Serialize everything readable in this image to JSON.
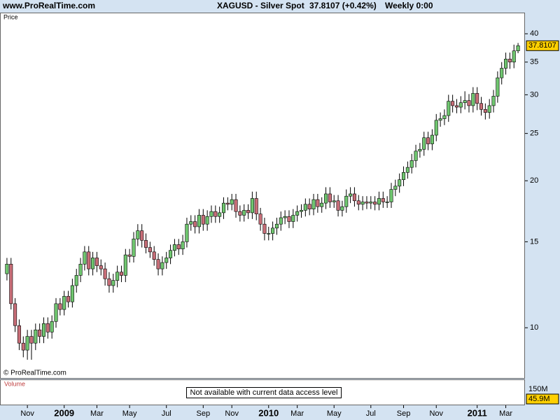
{
  "header": {
    "site": "www.ProRealTime.com",
    "symbol": "XAGUSD - Silver Spot",
    "quote": "37.8107 (+0.42%)",
    "timeframe": "Weekly  0:00"
  },
  "chart_data": {
    "type": "candlestick",
    "panel_label": "Price",
    "copyright": "© ProRealTime.com",
    "log_scale": true,
    "up_color": "#6fc66f",
    "down_color": "#c86e78",
    "ylim": [
      7.89,
      44.2
    ],
    "yticks": [
      10,
      15,
      20,
      25,
      30,
      35,
      40
    ],
    "categories": [
      null,
      null,
      null,
      null,
      null,
      "Nov",
      null,
      null,
      null,
      null,
      null,
      null,
      null,
      null,
      "2009",
      null,
      null,
      null,
      null,
      null,
      null,
      null,
      "Mar",
      null,
      null,
      null,
      null,
      null,
      null,
      null,
      "May",
      null,
      null,
      null,
      null,
      null,
      null,
      null,
      null,
      "Jul",
      null,
      null,
      null,
      null,
      null,
      null,
      null,
      null,
      "Sep",
      null,
      null,
      null,
      null,
      null,
      null,
      "Nov",
      null,
      null,
      null,
      null,
      null,
      null,
      null,
      null,
      "2010",
      null,
      null,
      null,
      null,
      null,
      null,
      "Mar",
      null,
      null,
      null,
      null,
      null,
      null,
      null,
      null,
      "May",
      null,
      null,
      null,
      null,
      null,
      null,
      null,
      null,
      "Jul",
      null,
      null,
      null,
      null,
      null,
      null,
      null,
      "Sep",
      null,
      null,
      null,
      null,
      null,
      null,
      null,
      "Nov",
      null,
      null,
      null,
      null,
      null,
      null,
      null,
      null,
      null,
      "2011",
      null,
      null,
      null,
      null,
      null,
      null,
      "Mar",
      null,
      null,
      null
    ],
    "open": [
      12.9,
      13.5,
      11.2,
      10.1,
      9.3,
      9.0,
      9.6,
      9.3,
      9.9,
      9.6,
      10.2,
      9.8,
      10.3,
      11.2,
      10.9,
      11.6,
      11.3,
      12.2,
      12.8,
      13.5,
      14.3,
      13.2,
      13.9,
      13.4,
      13.2,
      12.6,
      12.2,
      12.5,
      13.0,
      12.8,
      14.1,
      14.0,
      15.2,
      15.8,
      15.1,
      14.6,
      14.3,
      13.8,
      13.2,
      13.6,
      13.9,
      14.4,
      14.8,
      14.5,
      15.0,
      16.3,
      16.5,
      16.1,
      17.0,
      16.3,
      16.9,
      17.3,
      16.9,
      17.2,
      18.0,
      17.9,
      18.3,
      17.3,
      17.0,
      17.4,
      17.2,
      18.4,
      17.1,
      16.3,
      15.6,
      15.6,
      16.0,
      16.3,
      16.8,
      16.9,
      16.5,
      17.0,
      17.3,
      17.4,
      17.9,
      17.5,
      18.3,
      17.7,
      18.0,
      18.8,
      18.1,
      18.2,
      17.4,
      17.7,
      18.6,
      18.8,
      18.2,
      17.9,
      18.1,
      18.0,
      18.1,
      17.9,
      18.4,
      18.1,
      18.1,
      19.2,
      19.5,
      20.1,
      20.8,
      21.3,
      22.0,
      23.0,
      23.2,
      24.5,
      23.8,
      24.8,
      26.6,
      26.8,
      27.2,
      29.1,
      28.5,
      28.3,
      28.9,
      29.2,
      28.5,
      30.2,
      28.8,
      28.0,
      27.6,
      28.5,
      29.8,
      32.5,
      34.0,
      35.5,
      35.0,
      36.9
    ],
    "high": [
      13.9,
      13.9,
      11.5,
      10.4,
      9.6,
      9.9,
      9.9,
      10.2,
      10.2,
      10.5,
      10.5,
      10.6,
      11.5,
      11.5,
      11.9,
      11.9,
      12.6,
      13.2,
      13.9,
      14.7,
      14.7,
      14.3,
      14.3,
      13.8,
      13.6,
      13.0,
      12.9,
      13.4,
      13.4,
      14.5,
      14.5,
      15.7,
      16.3,
      16.3,
      15.6,
      15.0,
      14.7,
      14.2,
      14.0,
      14.3,
      14.8,
      15.2,
      15.2,
      15.5,
      16.8,
      17.0,
      17.0,
      17.5,
      17.5,
      17.4,
      17.8,
      17.8,
      17.7,
      18.5,
      18.5,
      18.8,
      18.8,
      17.8,
      17.9,
      17.9,
      19.0,
      19.0,
      17.6,
      16.8,
      16.1,
      16.5,
      16.8,
      17.3,
      17.4,
      17.4,
      17.5,
      17.8,
      17.9,
      18.4,
      18.4,
      18.8,
      18.8,
      18.5,
      19.4,
      19.4,
      18.7,
      18.7,
      18.2,
      19.2,
      19.4,
      19.4,
      18.7,
      18.6,
      18.6,
      18.6,
      18.6,
      19.0,
      19.0,
      18.6,
      19.8,
      20.1,
      20.7,
      21.4,
      21.9,
      22.7,
      23.7,
      23.9,
      25.2,
      25.2,
      25.5,
      27.4,
      27.6,
      28.0,
      30.0,
      30.0,
      29.4,
      29.8,
      30.5,
      30.1,
      31.1,
      31.1,
      29.7,
      28.8,
      29.4,
      30.7,
      33.5,
      35.0,
      36.6,
      36.6,
      38.0,
      38.3
    ],
    "low": [
      12.5,
      10.9,
      9.8,
      9.0,
      8.7,
      8.6,
      8.6,
      9.0,
      9.3,
      9.3,
      9.5,
      9.5,
      10.0,
      10.6,
      10.6,
      11.0,
      11.0,
      11.8,
      12.4,
      13.1,
      12.8,
      12.8,
      13.0,
      12.8,
      12.2,
      11.8,
      11.8,
      12.1,
      12.4,
      12.4,
      13.6,
      13.6,
      14.7,
      14.6,
      14.2,
      13.9,
      13.4,
      12.8,
      12.8,
      13.2,
      13.5,
      14.0,
      14.1,
      14.1,
      14.6,
      15.8,
      15.6,
      15.6,
      15.8,
      15.8,
      16.4,
      16.4,
      16.4,
      16.7,
      17.4,
      17.4,
      16.8,
      16.5,
      16.5,
      16.7,
      16.7,
      16.6,
      15.8,
      15.1,
      15.1,
      15.1,
      15.5,
      15.8,
      16.3,
      16.0,
      16.0,
      16.5,
      16.8,
      16.9,
      17.0,
      17.0,
      17.2,
      17.2,
      17.5,
      17.6,
      17.6,
      16.9,
      16.9,
      17.2,
      18.0,
      17.7,
      17.4,
      17.4,
      17.5,
      17.5,
      17.4,
      17.4,
      17.6,
      17.6,
      17.6,
      18.6,
      18.9,
      19.5,
      20.2,
      20.7,
      21.3,
      22.3,
      22.5,
      23.1,
      23.1,
      24.1,
      25.8,
      26.0,
      26.4,
      27.6,
      27.5,
      27.5,
      28.0,
      27.6,
      27.6,
      27.9,
      27.2,
      26.7,
      26.8,
      27.6,
      28.9,
      31.5,
      33.0,
      33.9,
      34.0,
      36.5
    ],
    "close": [
      13.5,
      11.2,
      10.1,
      9.3,
      9.0,
      9.6,
      9.3,
      9.9,
      9.6,
      10.2,
      9.8,
      10.3,
      11.2,
      10.9,
      11.6,
      11.3,
      12.2,
      12.8,
      13.5,
      14.3,
      13.2,
      13.9,
      13.4,
      13.2,
      12.6,
      12.2,
      12.5,
      13.0,
      12.8,
      14.1,
      14.0,
      15.2,
      15.8,
      15.1,
      14.6,
      14.3,
      13.8,
      13.2,
      13.6,
      13.9,
      14.4,
      14.8,
      14.5,
      15.0,
      16.3,
      16.5,
      16.1,
      17.0,
      16.3,
      16.9,
      17.3,
      16.9,
      17.2,
      18.0,
      17.9,
      18.3,
      17.3,
      17.0,
      17.4,
      17.2,
      18.4,
      17.1,
      16.3,
      15.6,
      15.6,
      16.0,
      16.3,
      16.8,
      16.9,
      16.5,
      17.0,
      17.3,
      17.4,
      17.9,
      17.5,
      18.3,
      17.7,
      18.0,
      18.8,
      18.1,
      18.2,
      17.4,
      17.7,
      18.6,
      18.8,
      18.2,
      17.9,
      18.1,
      18.0,
      18.1,
      17.9,
      18.4,
      18.1,
      18.1,
      19.2,
      19.5,
      20.1,
      20.8,
      21.3,
      22.0,
      23.0,
      23.2,
      24.5,
      23.8,
      24.8,
      26.6,
      26.8,
      27.2,
      29.1,
      28.5,
      28.3,
      28.9,
      29.2,
      28.5,
      30.2,
      28.8,
      28.0,
      27.6,
      28.5,
      29.8,
      32.5,
      34.0,
      35.5,
      35.0,
      36.9,
      37.8107
    ]
  },
  "volume_panel": {
    "label": "Volume",
    "message": "Not available with current data access level",
    "axis_label": "150M",
    "last_label": "45.9M"
  }
}
